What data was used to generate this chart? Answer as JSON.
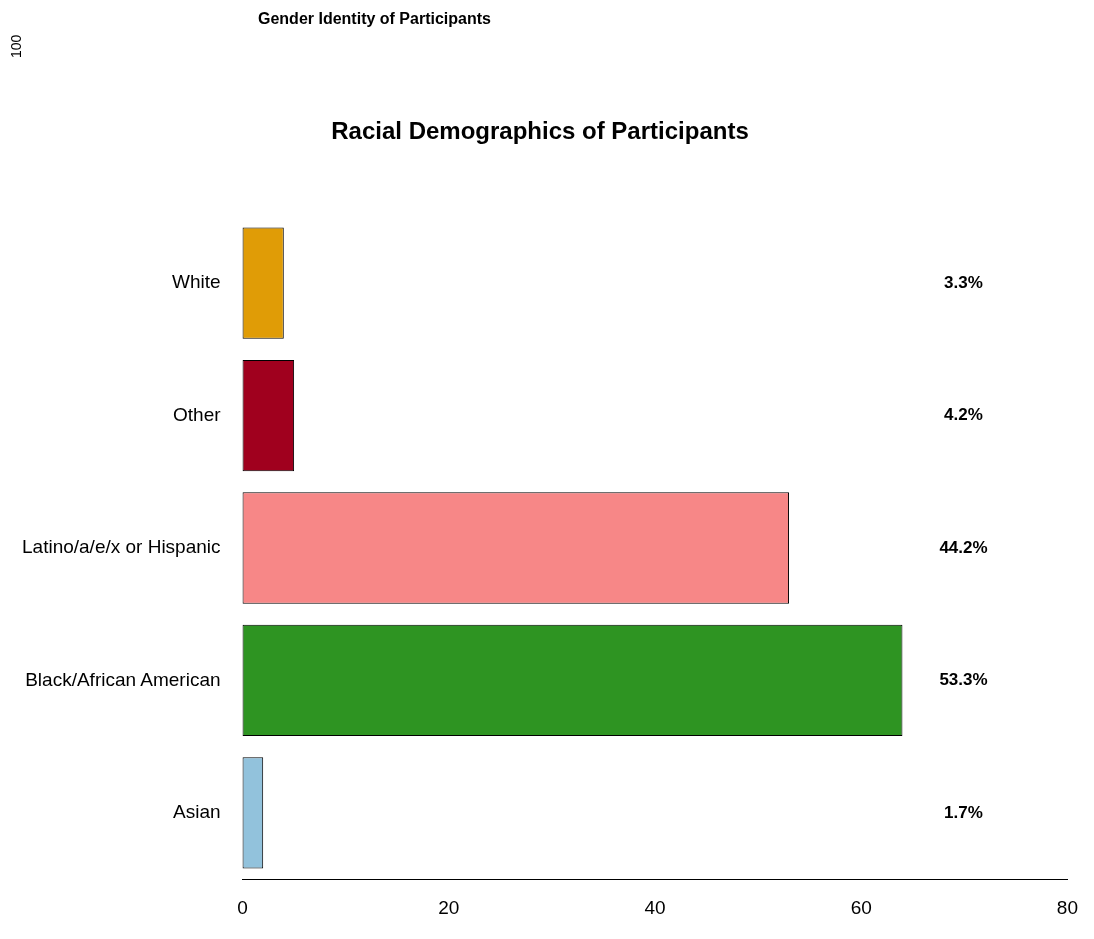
{
  "chart_data": {
    "type": "bar",
    "orientation": "horizontal",
    "title": "Racial Demographics of Participants",
    "annotations": [
      "Gender Identity of Participants",
      "100",
      "3.3%",
      "4.2%",
      "44.2%",
      "53.3%",
      "1.7%"
    ],
    "categories": [
      "White",
      "Other",
      "Latino/a/e/x or Hispanic",
      "Black/African American",
      "Asian"
    ],
    "values": [
      4,
      5,
      53,
      64,
      2
    ],
    "colors": [
      "#e09c06",
      "#a0001e",
      "#f78787",
      "#2e9422",
      "#92c2dc"
    ],
    "xlim": [
      0,
      80
    ],
    "xticks": [
      0,
      20,
      40,
      60,
      80
    ],
    "grid": false,
    "legend": false
  }
}
